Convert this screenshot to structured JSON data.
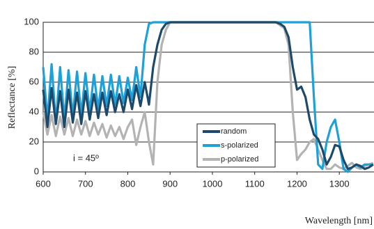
{
  "chart_data": {
    "type": "line",
    "x_label": "Wavelength [nm]",
    "y_label": "Reflectance [%]",
    "annotation": "i = 45º",
    "x": [
      600,
      610,
      620,
      630,
      640,
      650,
      660,
      670,
      680,
      690,
      700,
      710,
      720,
      730,
      740,
      750,
      760,
      770,
      780,
      790,
      800,
      810,
      820,
      830,
      840,
      850,
      860,
      870,
      880,
      890,
      900,
      910,
      920,
      930,
      940,
      950,
      960,
      970,
      980,
      990,
      1000,
      1010,
      1020,
      1030,
      1040,
      1050,
      1060,
      1070,
      1080,
      1090,
      1100,
      1110,
      1120,
      1130,
      1140,
      1150,
      1160,
      1170,
      1180,
      1190,
      1200,
      1210,
      1220,
      1230,
      1240,
      1250,
      1260,
      1270,
      1280,
      1290,
      1300,
      1310,
      1320,
      1330,
      1340,
      1350,
      1360,
      1370,
      1380
    ],
    "series": [
      {
        "name": "random",
        "color": "#1d4a6b",
        "values": [
          55,
          30,
          56,
          32,
          54,
          30,
          55,
          33,
          53,
          32,
          54,
          35,
          52,
          36,
          53,
          38,
          54,
          40,
          52,
          40,
          55,
          42,
          58,
          44,
          60,
          45,
          70,
          85,
          95,
          99,
          100,
          100,
          100,
          100,
          100,
          100,
          100,
          100,
          100,
          100,
          100,
          100,
          100,
          100,
          100,
          100,
          100,
          100,
          100,
          100,
          100,
          100,
          100,
          100,
          100,
          100,
          99,
          97,
          90,
          70,
          55,
          57,
          50,
          35,
          25,
          22,
          15,
          5,
          10,
          18,
          17,
          8,
          2,
          3,
          5,
          4,
          2,
          3,
          5
        ]
      },
      {
        "name": "s-polarized",
        "color": "#1ea1d9",
        "values": [
          70,
          35,
          72,
          33,
          70,
          35,
          68,
          37,
          67,
          38,
          66,
          40,
          65,
          42,
          64,
          44,
          65,
          45,
          64,
          46,
          63,
          48,
          70,
          50,
          85,
          99,
          100,
          100,
          100,
          100,
          100,
          100,
          100,
          100,
          100,
          100,
          100,
          100,
          100,
          100,
          100,
          100,
          100,
          100,
          100,
          100,
          100,
          100,
          100,
          100,
          100,
          100,
          100,
          100,
          100,
          100,
          100,
          100,
          100,
          100,
          100,
          100,
          100,
          100,
          50,
          5,
          2,
          20,
          30,
          35,
          20,
          2,
          0,
          3,
          5,
          3,
          5,
          5,
          5
        ]
      },
      {
        "name": "p-polarized",
        "color": "#b3b3b3",
        "values": [
          40,
          25,
          38,
          24,
          37,
          25,
          36,
          24,
          35,
          25,
          34,
          24,
          33,
          25,
          32,
          23,
          31,
          24,
          30,
          22,
          30,
          35,
          18,
          30,
          40,
          20,
          5,
          60,
          85,
          95,
          100,
          100,
          100,
          100,
          100,
          100,
          100,
          100,
          100,
          100,
          100,
          100,
          100,
          100,
          100,
          100,
          100,
          100,
          100,
          100,
          100,
          100,
          100,
          100,
          100,
          100,
          98,
          96,
          85,
          40,
          8,
          12,
          15,
          20,
          22,
          15,
          8,
          2,
          2,
          5,
          3,
          2,
          4,
          6,
          3,
          2,
          4,
          5,
          6
        ]
      }
    ],
    "xlim": [
      600,
      1382
    ],
    "ylim": [
      0,
      100
    ],
    "xticks": [
      600,
      700,
      800,
      900,
      1000,
      1100,
      1200,
      1300
    ],
    "yticks": [
      0,
      20,
      40,
      60,
      80,
      100
    ],
    "grid": true
  }
}
